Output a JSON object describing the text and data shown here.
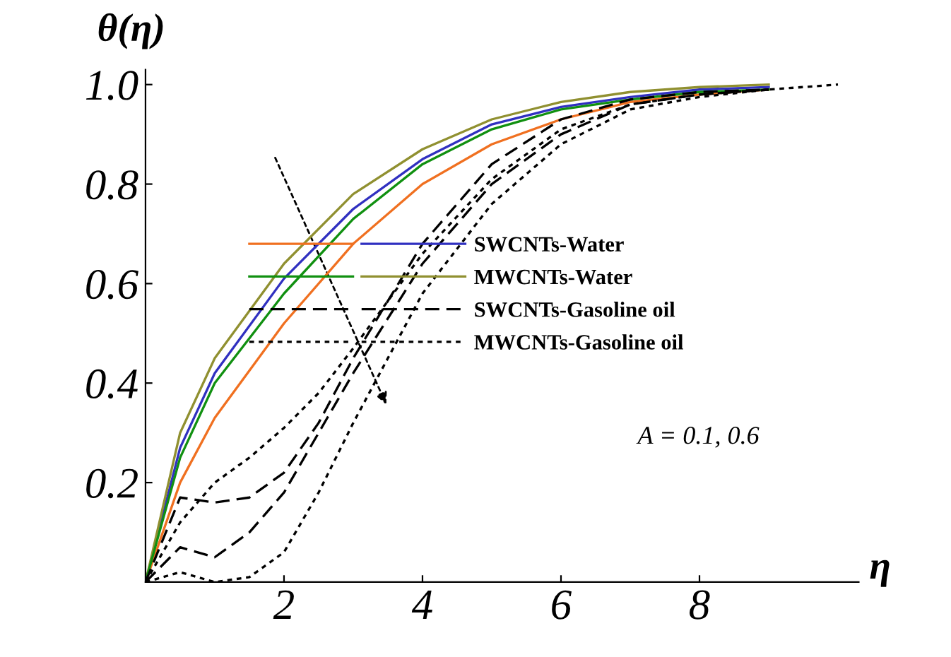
{
  "chart_data": {
    "type": "line",
    "xlabel": "η",
    "ylabel": "θ(η)",
    "xlim": [
      0,
      10.3
    ],
    "ylim": [
      0,
      1.03
    ],
    "xticks": [
      2,
      4,
      6,
      8
    ],
    "yticks": [
      {
        "value": 0.2,
        "label": "0.2"
      },
      {
        "value": 0.4,
        "label": "0.4"
      },
      {
        "value": 0.6,
        "label": "0.6"
      },
      {
        "value": 0.8,
        "label": "0.8"
      },
      {
        "value": 1.0,
        "label": "1.0"
      }
    ],
    "grid": false,
    "legend": "center",
    "marker": "none",
    "annotations": [
      "A = 0.1, 0.6"
    ],
    "series": [
      {
        "name": "SWCNTs-Water",
        "color": "#3030c0",
        "line_style": "solid",
        "x": [
          0,
          0.5,
          1,
          2,
          3,
          4,
          5,
          6,
          7,
          8,
          9
        ],
        "values": [
          0,
          0.27,
          0.42,
          0.61,
          0.75,
          0.85,
          0.92,
          0.955,
          0.975,
          0.99,
          0.995
        ]
      },
      {
        "color": "#f07020",
        "line_style": "solid",
        "x": [
          0,
          0.5,
          1,
          2,
          3,
          4,
          5,
          6,
          7,
          8,
          9
        ],
        "values": [
          0,
          0.2,
          0.33,
          0.52,
          0.68,
          0.8,
          0.88,
          0.93,
          0.965,
          0.98,
          0.99
        ]
      },
      {
        "name": "MWCNTs-Water",
        "color": "#909030",
        "line_style": "solid",
        "x": [
          0,
          0.5,
          1,
          2,
          3,
          4,
          5,
          6,
          7,
          8,
          9
        ],
        "values": [
          0,
          0.3,
          0.45,
          0.64,
          0.78,
          0.87,
          0.93,
          0.965,
          0.985,
          0.995,
          1.0
        ]
      },
      {
        "color": "#109010",
        "line_style": "solid",
        "x": [
          0,
          0.5,
          1,
          2,
          3,
          4,
          5,
          6,
          7,
          8,
          9
        ],
        "values": [
          0,
          0.25,
          0.4,
          0.58,
          0.73,
          0.84,
          0.91,
          0.95,
          0.97,
          0.985,
          0.99
        ]
      },
      {
        "name": "SWCNTs-Gasoline oil",
        "color": "#000000",
        "line_style": "dashed",
        "x": [
          0,
          0.5,
          1,
          1.5,
          2,
          2.5,
          3,
          4,
          5,
          6,
          7,
          8,
          9
        ],
        "values": [
          0,
          0.17,
          0.16,
          0.17,
          0.22,
          0.32,
          0.45,
          0.68,
          0.84,
          0.93,
          0.97,
          0.985,
          0.99
        ]
      },
      {
        "color": "#000000",
        "line_style": "dashed",
        "x": [
          0,
          0.5,
          1,
          1.5,
          2,
          2.5,
          3,
          4,
          5,
          6,
          7,
          8,
          9
        ],
        "values": [
          0,
          0.07,
          0.05,
          0.1,
          0.18,
          0.3,
          0.42,
          0.64,
          0.8,
          0.9,
          0.96,
          0.98,
          0.99
        ]
      },
      {
        "name": "MWCNTs-Gasoline oil",
        "color": "#000000",
        "line_style": "dotted",
        "x": [
          0,
          0.5,
          1,
          1.5,
          2,
          2.5,
          3,
          4,
          5,
          6,
          7,
          8,
          9
        ],
        "values": [
          0,
          0.12,
          0.2,
          0.25,
          0.31,
          0.38,
          0.47,
          0.66,
          0.81,
          0.91,
          0.96,
          0.98,
          0.99
        ]
      },
      {
        "color": "#000000",
        "line_style": "dotted",
        "x": [
          0,
          0.5,
          1,
          1.5,
          2,
          2.5,
          3,
          4,
          5,
          6,
          7,
          8,
          9,
          10
        ],
        "values": [
          0,
          0.02,
          0.0,
          0.01,
          0.06,
          0.18,
          0.32,
          0.58,
          0.76,
          0.88,
          0.95,
          0.975,
          0.99,
          1.0
        ]
      }
    ]
  }
}
